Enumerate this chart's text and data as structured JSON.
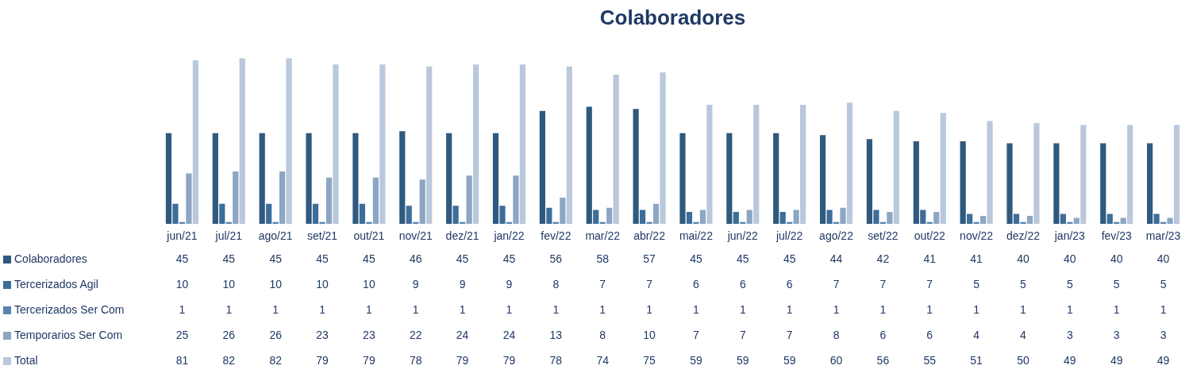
{
  "chart_data": {
    "type": "bar",
    "title": "Colaboradores",
    "categories": [
      "jun/21",
      "jul/21",
      "ago/21",
      "set/21",
      "out/21",
      "nov/21",
      "dez/21",
      "jan/22",
      "fev/22",
      "mar/22",
      "abr/22",
      "mai/22",
      "jun/22",
      "jul/22",
      "ago/22",
      "set/22",
      "out/22",
      "nov/22",
      "dez/22",
      "jan/23",
      "fev/23",
      "mar/23"
    ],
    "series": [
      {
        "name": "Colaboradores",
        "color": "#2f5a7e",
        "values": [
          45,
          45,
          45,
          45,
          45,
          46,
          45,
          45,
          56,
          58,
          57,
          45,
          45,
          45,
          44,
          42,
          41,
          41,
          40,
          40,
          40,
          40
        ]
      },
      {
        "name": "Tercerizados Agil",
        "color": "#3d6e99",
        "values": [
          10,
          10,
          10,
          10,
          10,
          9,
          9,
          9,
          8,
          7,
          7,
          6,
          6,
          6,
          7,
          7,
          7,
          5,
          5,
          5,
          5,
          5
        ]
      },
      {
        "name": "Tercerizados Ser Com",
        "color": "#5585b3",
        "values": [
          1,
          1,
          1,
          1,
          1,
          1,
          1,
          1,
          1,
          1,
          1,
          1,
          1,
          1,
          1,
          1,
          1,
          1,
          1,
          1,
          1,
          1
        ]
      },
      {
        "name": "Temporarios Ser Com",
        "color": "#8ca6c3",
        "values": [
          25,
          26,
          26,
          23,
          23,
          22,
          24,
          24,
          13,
          8,
          10,
          7,
          7,
          7,
          8,
          6,
          6,
          4,
          4,
          3,
          3,
          3
        ]
      },
      {
        "name": "Total",
        "color": "#b9c8da",
        "values": [
          81,
          82,
          82,
          79,
          79,
          78,
          79,
          79,
          78,
          74,
          75,
          59,
          59,
          59,
          60,
          56,
          55,
          51,
          50,
          49,
          49,
          49
        ]
      }
    ],
    "data_labels": true,
    "legend": "bottom left",
    "grid": false
  }
}
